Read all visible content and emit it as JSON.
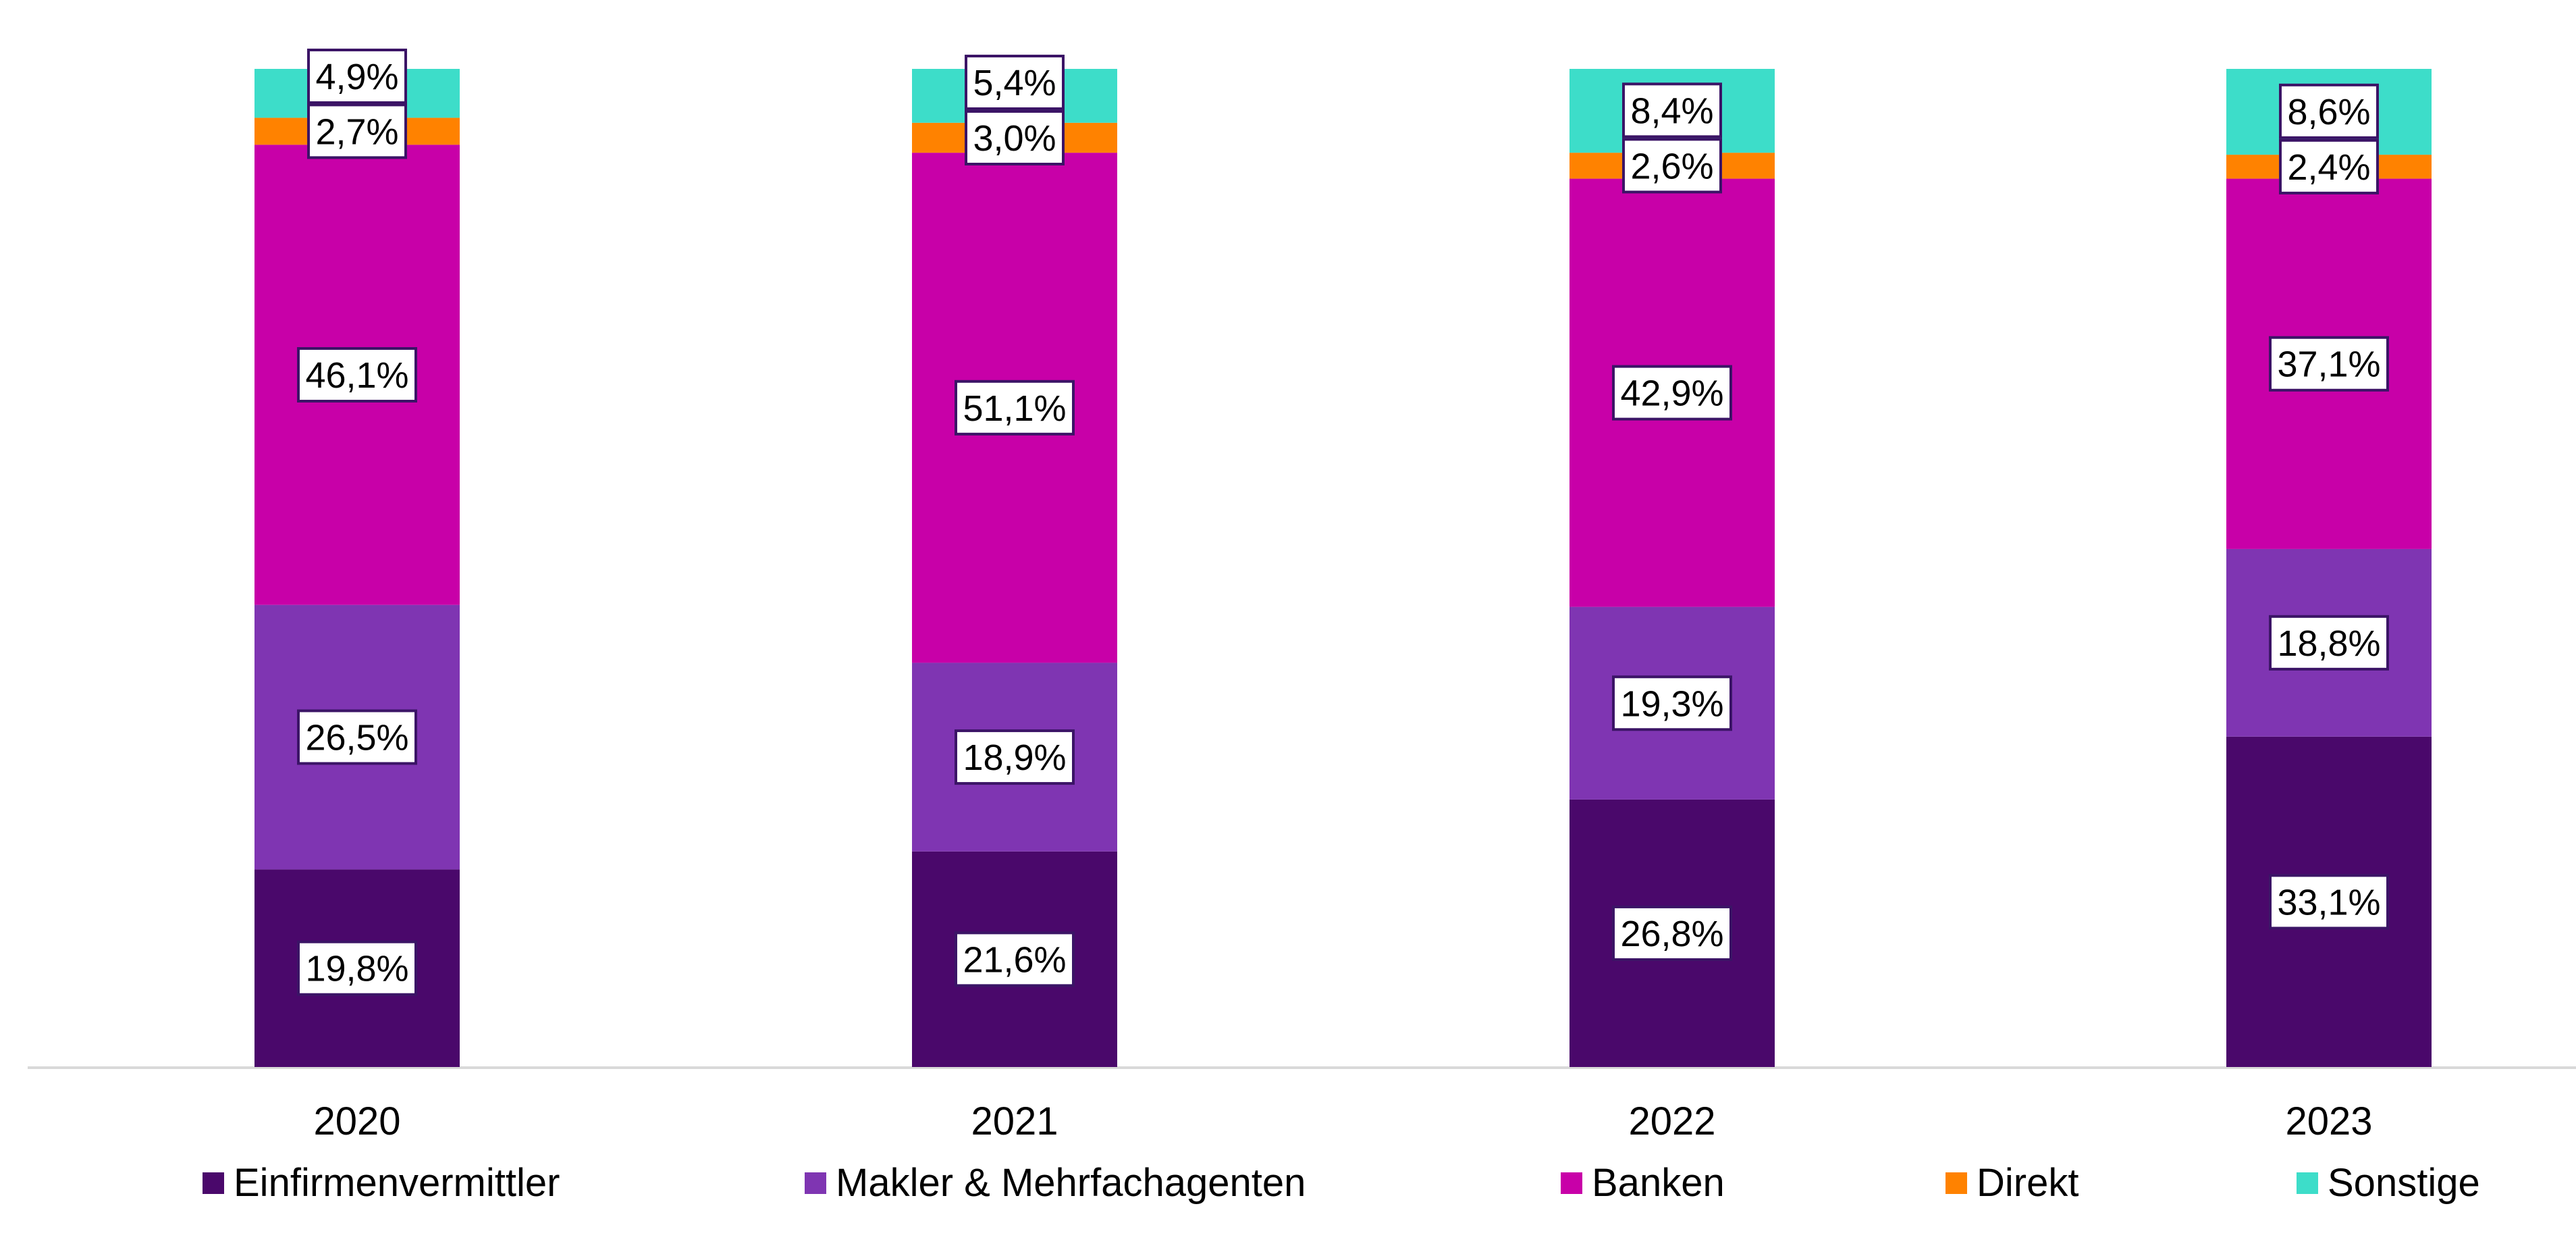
{
  "chart_data": {
    "type": "bar",
    "stacked": true,
    "title": "",
    "xlabel": "",
    "ylabel": "",
    "ylim": [
      0,
      100
    ],
    "grid": false,
    "legend_position": "bottom",
    "categories": [
      "2020",
      "2021",
      "2022",
      "2023"
    ],
    "series": [
      {
        "name": "Einfirmenvermittler",
        "color": "#4a086b",
        "values": [
          19.8,
          21.6,
          26.8,
          33.1
        ],
        "labels": [
          "19,8%",
          "21,6%",
          "26,8%",
          "33,1%"
        ]
      },
      {
        "name": "Makler & Mehrfachagenten",
        "color": "#7f35b2",
        "values": [
          26.5,
          18.9,
          19.3,
          18.8
        ],
        "labels": [
          "26,5%",
          "18,9%",
          "19,3%",
          "18,8%"
        ]
      },
      {
        "name": "Banken",
        "color": "#c800a8",
        "values": [
          46.1,
          51.1,
          42.9,
          37.1
        ],
        "labels": [
          "46,1%",
          "51,1%",
          "42,9%",
          "37,1%"
        ]
      },
      {
        "name": "Direkt",
        "color": "#ff8200",
        "values": [
          2.7,
          3.0,
          2.6,
          2.4
        ],
        "labels": [
          "2,7%",
          "3,0%",
          "2,6%",
          "2,4%"
        ]
      },
      {
        "name": "Sonstige",
        "color": "#3dddc9",
        "values": [
          4.9,
          5.4,
          8.4,
          8.6
        ],
        "labels": [
          "4,9%",
          "5,4%",
          "8,4%",
          "8,6%"
        ]
      }
    ]
  }
}
